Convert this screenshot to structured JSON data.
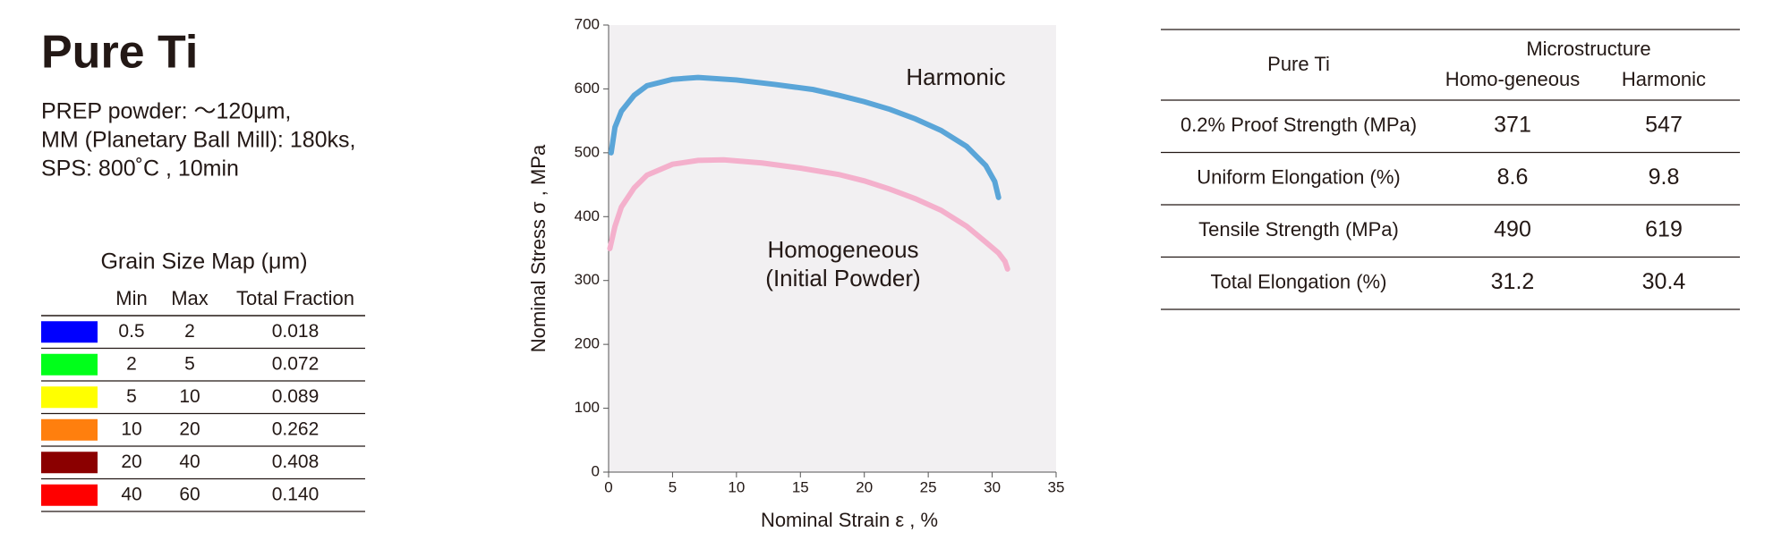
{
  "header": {
    "title": "Pure Ti",
    "lines": [
      "PREP powder: ～120μm,",
      "MM (Planetary Ball Mill): 180ks,",
      "SPS: 800˚C , 10min"
    ]
  },
  "grain_map": {
    "title": "Grain Size Map (μm)",
    "columns": [
      "Min",
      "Max",
      "Total Fraction"
    ],
    "rows": [
      {
        "color": "#0000ff",
        "cells": [
          "0.5",
          "2",
          "0.018"
        ]
      },
      {
        "color": "#00ff1a",
        "cells": [
          "2",
          "5",
          "0.072"
        ]
      },
      {
        "color": "#ffff00",
        "cells": [
          "5",
          "10",
          "0.089"
        ]
      },
      {
        "color": "#ff7f0e",
        "cells": [
          "10",
          "20",
          "0.262"
        ]
      },
      {
        "color": "#8b0000",
        "cells": [
          "20",
          "40",
          "0.408"
        ]
      },
      {
        "color": "#ff0000",
        "cells": [
          "40",
          "60",
          "0.140"
        ]
      }
    ]
  },
  "chart_data": {
    "type": "line",
    "x_label": "Nominal Strain ε , %",
    "y_label": "Nominal Stress σ , MPa",
    "xlim": [
      0,
      35
    ],
    "xticks": [
      0,
      5,
      10,
      15,
      20,
      25,
      30,
      35
    ],
    "ylim": [
      0,
      700
    ],
    "yticks": [
      0,
      100,
      200,
      300,
      400,
      500,
      600,
      700
    ],
    "background": "#f2f0f2",
    "series": [
      {
        "name": [
          "Harmonic"
        ],
        "color": "#5aa5d8",
        "x": [
          0.2,
          0.5,
          1,
          2,
          3,
          5,
          7,
          10,
          13,
          16,
          18,
          20,
          22,
          24,
          26,
          28,
          29.5,
          30.2,
          30.5
        ],
        "values": [
          500,
          540,
          565,
          590,
          605,
          615,
          618,
          614,
          607,
          599,
          590,
          580,
          568,
          553,
          535,
          510,
          480,
          455,
          430
        ]
      },
      {
        "name": [
          "Homogeneous",
          "(Initial Powder)"
        ],
        "color": "#f4b0cc",
        "x": [
          0.1,
          0.5,
          1,
          2,
          3,
          5,
          7,
          9,
          12,
          15,
          18,
          20,
          22,
          24,
          26,
          28,
          29.5,
          30.5,
          31,
          31.2
        ],
        "values": [
          350,
          385,
          415,
          445,
          465,
          482,
          488,
          489,
          484,
          476,
          466,
          456,
          443,
          428,
          410,
          385,
          360,
          343,
          330,
          318
        ]
      }
    ]
  },
  "table": {
    "row_header": "Pure Ti",
    "group": "Microstructure",
    "columns": [
      "Homo-geneous",
      "Harmonic"
    ],
    "rows": [
      {
        "label": "0.2% Proof Strength (MPa)",
        "values": [
          "371",
          "547"
        ]
      },
      {
        "label": "Uniform Elongation (%)",
        "values": [
          "8.6",
          "9.8"
        ]
      },
      {
        "label": "Tensile Strength (MPa)",
        "values": [
          "490",
          "619"
        ]
      },
      {
        "label": "Total Elongation (%)",
        "values": [
          "31.2",
          "30.4"
        ]
      }
    ]
  }
}
